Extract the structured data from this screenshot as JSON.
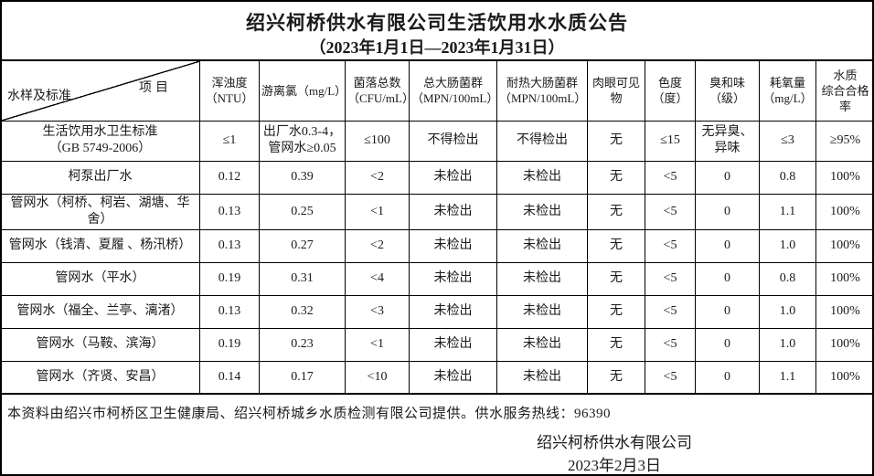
{
  "title": "绍兴柯桥供水有限公司生活饮用水水质公告",
  "subtitle": "（2023年1月1日—2023年1月31日）",
  "table": {
    "corner": {
      "top_right": "项目",
      "bottom_left": "水样及标准"
    },
    "columns": [
      {
        "label": "浑浊度\n（NTU）"
      },
      {
        "label": "游离氯（mg/L）"
      },
      {
        "label": "菌落总数\n（CFU/mL）"
      },
      {
        "label": "总大肠菌群\n（MPN/100mL）"
      },
      {
        "label": "耐热大肠菌群\n（MPN/100mL）"
      },
      {
        "label": "肉眼可见物"
      },
      {
        "label": "色度\n（度）"
      },
      {
        "label": "臭和味\n（级）"
      },
      {
        "label": "耗氧量\n（mg/L）"
      },
      {
        "label": "水质\n综合合格率"
      }
    ],
    "rows": [
      {
        "label": "生活饮用水卫生标准\n（GB 5749-2006）",
        "values": [
          "≤1",
          "出厂水0.3-4，\n管网水≥0.05",
          "≤100",
          "不得检出",
          "不得检出",
          "无",
          "≤15",
          "无异臭、\n异味",
          "≤3",
          "≥95%"
        ]
      },
      {
        "label": "柯泵出厂水",
        "values": [
          "0.12",
          "0.39",
          "<2",
          "未检出",
          "未检出",
          "无",
          "<5",
          "0",
          "0.8",
          "100%"
        ]
      },
      {
        "label": "管网水（柯桥、柯岩、湖塘、华舍）",
        "values": [
          "0.13",
          "0.25",
          "<1",
          "未检出",
          "未检出",
          "无",
          "<5",
          "0",
          "1.1",
          "100%"
        ]
      },
      {
        "label": "管网水（钱清、夏履 、杨汛桥）",
        "values": [
          "0.13",
          "0.27",
          "<2",
          "未检出",
          "未检出",
          "无",
          "<5",
          "0",
          "1.0",
          "100%"
        ]
      },
      {
        "label": "管网水（平水）",
        "values": [
          "0.19",
          "0.31",
          "<4",
          "未检出",
          "未检出",
          "无",
          "<5",
          "0",
          "0.8",
          "100%"
        ]
      },
      {
        "label": "管网水（福全、兰亭、漓渚）",
        "values": [
          "0.13",
          "0.32",
          "<3",
          "未检出",
          "未检出",
          "无",
          "<5",
          "0",
          "1.0",
          "100%"
        ]
      },
      {
        "label": "管网水（马鞍、滨海）",
        "values": [
          "0.19",
          "0.23",
          "<1",
          "未检出",
          "未检出",
          "无",
          "<5",
          "0",
          "1.0",
          "100%"
        ]
      },
      {
        "label": "管网水（齐贤、安昌）",
        "values": [
          "0.14",
          "0.17",
          "<10",
          "未检出",
          "未检出",
          "无",
          "<5",
          "0",
          "1.1",
          "100%"
        ]
      }
    ]
  },
  "footer": {
    "note": "本资料由绍兴市柯桥区卫生健康局、绍兴柯桥城乡水质检测有限公司提供。供水服务热线：96390",
    "company": "绍兴柯桥供水有限公司",
    "date": "2023年2月3日"
  },
  "colors": {
    "text": "#1a1a1a",
    "border": "#000000",
    "background": "#ffffff"
  }
}
